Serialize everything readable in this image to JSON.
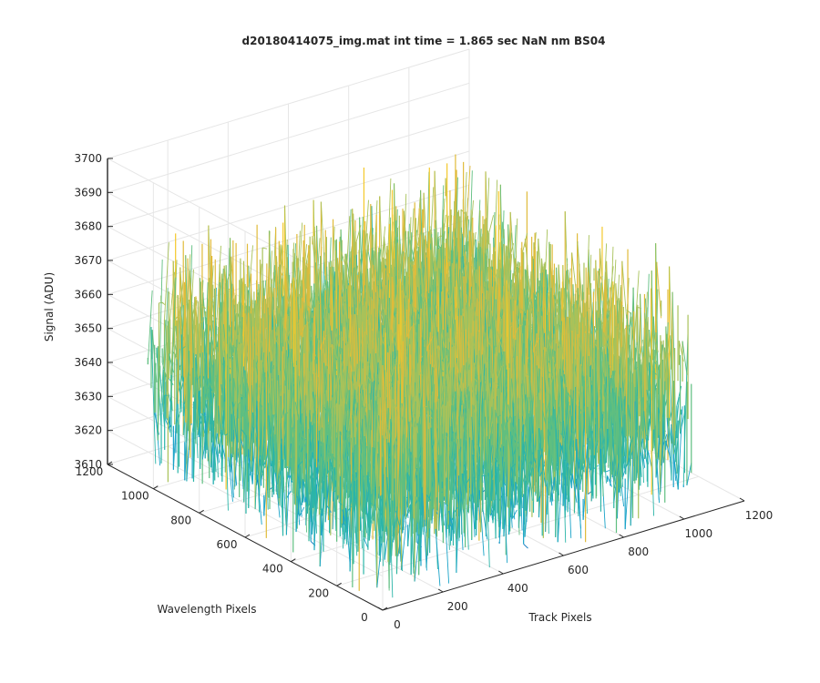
{
  "chart_data": {
    "type": "surface",
    "title": "d20180414075_img.mat int time = 1.865 sec  NaN nm BS04",
    "xlabel": "Track Pixels",
    "ylabel": "Wavelength Pixels",
    "zlabel": "Signal (ADU)",
    "xlim": [
      0,
      1200
    ],
    "ylim": [
      0,
      1200
    ],
    "zlim": [
      3610,
      3700
    ],
    "x_ticks": [
      "0",
      "200",
      "400",
      "600",
      "800",
      "1000",
      "1200"
    ],
    "y_ticks": [
      "0",
      "200",
      "400",
      "600",
      "800",
      "1000",
      "1200"
    ],
    "z_ticks": [
      "3610",
      "3620",
      "3630",
      "3640",
      "3650",
      "3660",
      "3670",
      "3680",
      "3690",
      "3700"
    ],
    "grid": true,
    "box": true,
    "data_extent": {
      "x": [
        0,
        1024
      ],
      "y": [
        0,
        1024
      ]
    },
    "signal_summary": {
      "min": 3612,
      "mean": 3645,
      "max": 3690
    },
    "colormap": [
      "#0072bd",
      "#1aa3c8",
      "#2bb5a8",
      "#5fbf80",
      "#a8c25a",
      "#e0bb3a",
      "#f4c82a"
    ]
  }
}
